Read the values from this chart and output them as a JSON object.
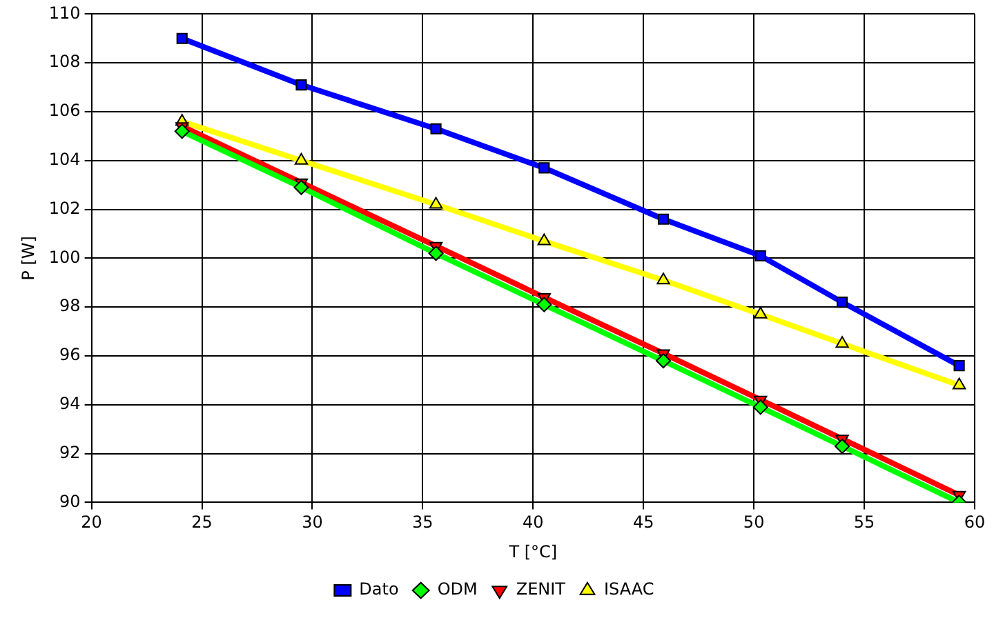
{
  "chart_data": {
    "type": "line",
    "xlabel": "T [°C]",
    "ylabel": "P [W]",
    "x": [
      24.1,
      29.5,
      35.6,
      40.5,
      45.9,
      50.3,
      54.0,
      59.3
    ],
    "xlim": [
      20,
      60
    ],
    "xticks": [
      20,
      25,
      30,
      35,
      40,
      45,
      50,
      55,
      60
    ],
    "ylim": [
      90,
      110
    ],
    "yticks": [
      90,
      92,
      94,
      96,
      98,
      100,
      102,
      104,
      106,
      108,
      110
    ],
    "grid": true,
    "legend": "bottom",
    "series": [
      {
        "name": "Dato",
        "color": "#0000ff",
        "marker": "square",
        "values": [
          109.0,
          107.1,
          105.3,
          103.7,
          101.6,
          100.1,
          98.2,
          95.6
        ]
      },
      {
        "name": "ODM",
        "color": "#00ff00",
        "marker": "diamond",
        "values": [
          105.2,
          102.9,
          100.2,
          98.1,
          95.8,
          93.9,
          92.3,
          90.0
        ]
      },
      {
        "name": "ZENIT",
        "color": "#ff0000",
        "marker": "triangle-down",
        "values": [
          105.4,
          103.1,
          100.5,
          98.4,
          96.1,
          94.2,
          92.6,
          90.3
        ]
      },
      {
        "name": "ISAAC",
        "color": "#ffff00",
        "marker": "triangle",
        "values": [
          105.6,
          104.0,
          102.2,
          100.7,
          99.1,
          97.7,
          96.5,
          94.8
        ]
      }
    ]
  }
}
